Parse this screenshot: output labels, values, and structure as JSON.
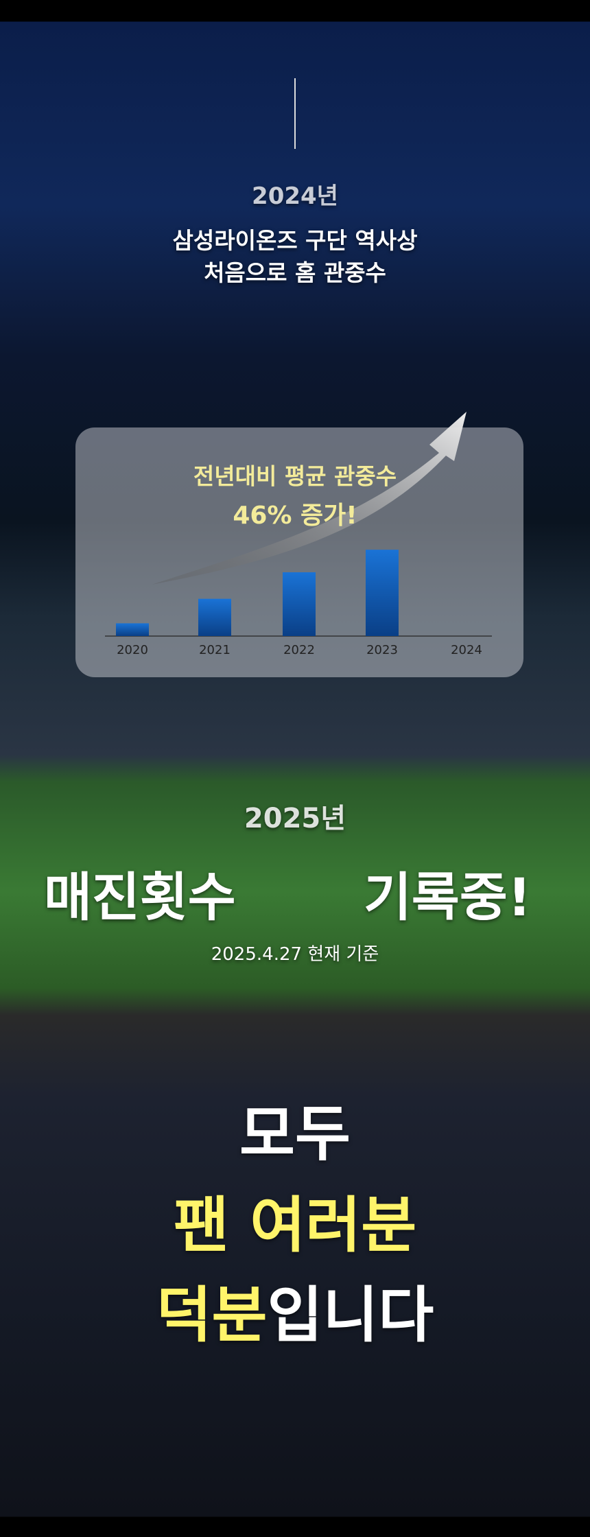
{
  "header": {
    "year": "2024년",
    "line1": "삼성라이온즈 구단 역사상",
    "line2": "처음으로 홈 관중수"
  },
  "chart_data": {
    "type": "bar",
    "title": "전년대비 평균 관중수",
    "subtitle": "46% 증가!",
    "categories": [
      "2020",
      "2021",
      "2022",
      "2023",
      "2024"
    ],
    "values": [
      13,
      38,
      65,
      88,
      null
    ],
    "color": "#0d5fb8"
  },
  "record": {
    "year": "2025년",
    "left": "매진횟수",
    "right": "기록중!",
    "note": "2025.4.27 현재 기준"
  },
  "closing": {
    "line1": "모두",
    "line2": "팬 여러분",
    "line3a": "덕분",
    "line3b": "입니다"
  }
}
